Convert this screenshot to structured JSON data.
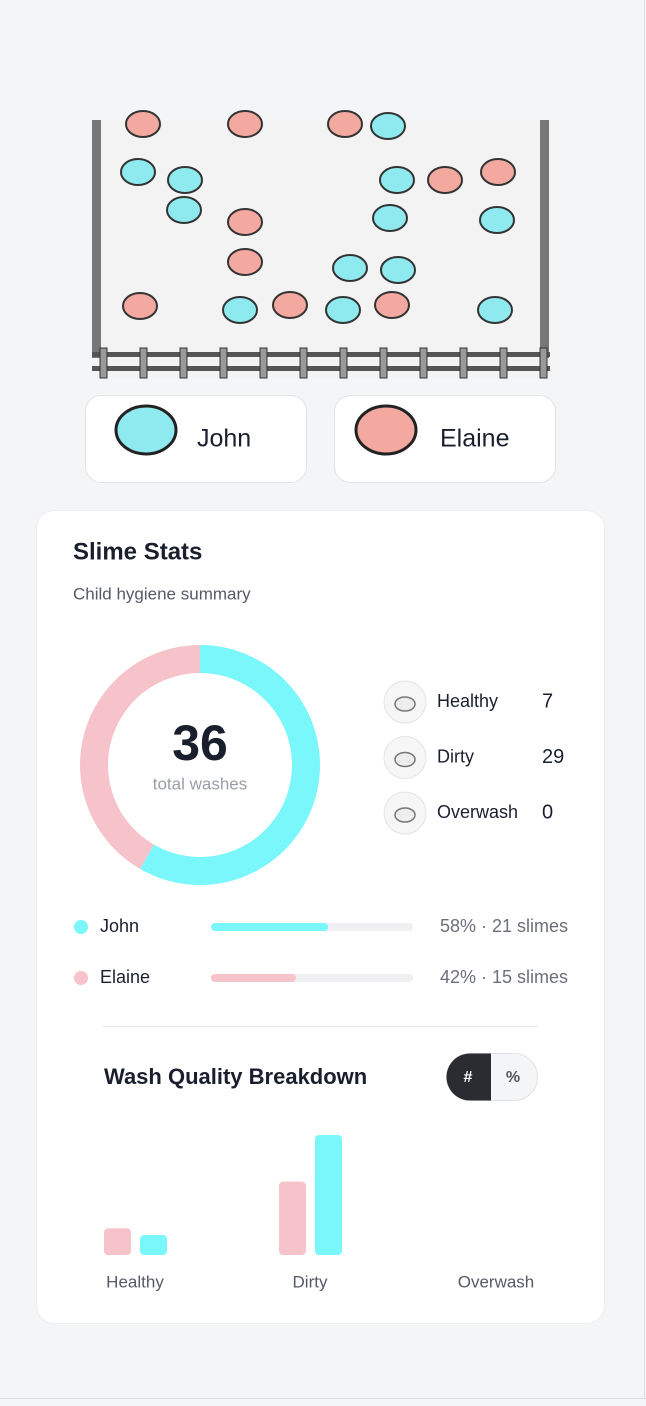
{
  "kids": [
    {
      "name": "John"
    },
    {
      "name": "Elaine"
    }
  ],
  "stats": {
    "title": "Slime Stats",
    "subtitle": "Child hygiene summary",
    "total": 36,
    "total_label": "total washes",
    "quality": [
      {
        "name": "Healthy",
        "count": 7
      },
      {
        "name": "Dirty",
        "count": 29
      },
      {
        "name": "Overwash",
        "count": 0
      }
    ],
    "kids": [
      {
        "name": "John",
        "color": "#7af7fa",
        "slimes": 21,
        "share": 58,
        "label": "58% · 21 slimes"
      },
      {
        "name": "Elaine",
        "color": "#f6c3ca",
        "slimes": 15,
        "share": 42,
        "label": "42% · 15 slimes"
      }
    ]
  },
  "chart_data": {
    "type": "bar",
    "title": "Wash Quality Breakdown",
    "categories": [
      "Healthy",
      "Dirty",
      "Overwash"
    ],
    "series": [
      {
        "name": "Elaine",
        "color": "#f6c3ca",
        "values": [
          4,
          11,
          0
        ]
      },
      {
        "name": "John",
        "color": "#7af7fa",
        "values": [
          3,
          18,
          0
        ]
      }
    ],
    "toggle": [
      "#",
      "%"
    ]
  }
}
